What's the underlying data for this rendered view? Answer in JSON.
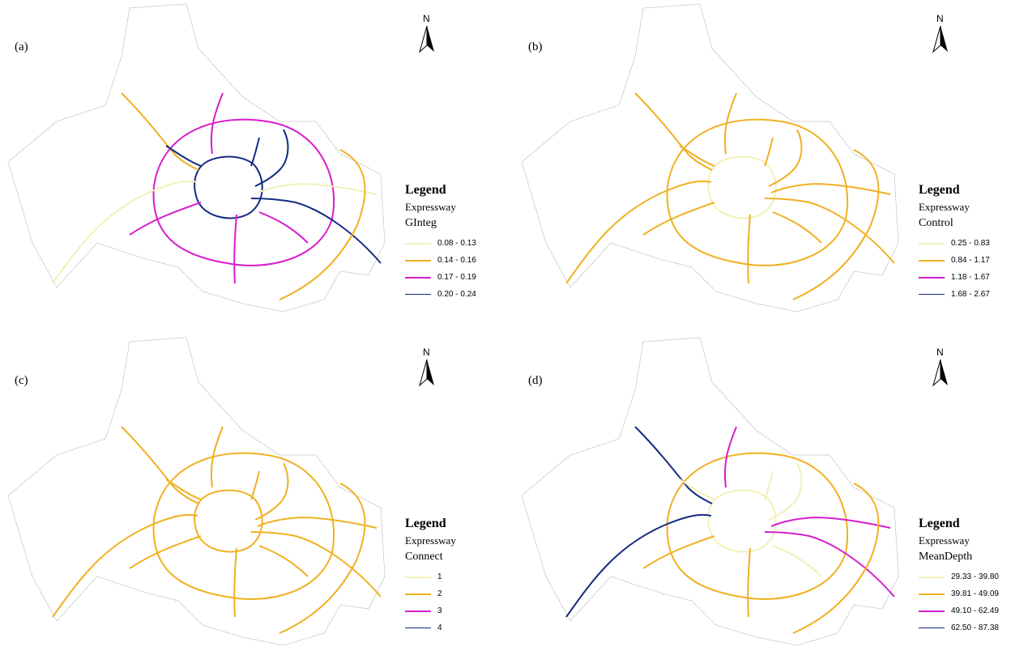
{
  "colors": {
    "class1": "#f2f0b8",
    "class2": "#f0b020",
    "class3": "#d81ccc",
    "class4": "#142a80",
    "boundary": "#a8a8a8"
  },
  "north_label": "N",
  "panels": [
    {
      "label": "(a)",
      "legend_title": "Legend",
      "layer": "Expressway",
      "field": "GInteg",
      "classes": [
        "0.08 - 0.13",
        "0.14 - 0.16",
        "0.17 - 0.19",
        "0.20 - 0.24"
      ]
    },
    {
      "label": "(b)",
      "legend_title": "Legend",
      "layer": "Expressway",
      "field": "Control",
      "classes": [
        "0.25 - 0.83",
        "0.84 - 1.17",
        "1.18 - 1.67",
        "1.68 - 2.67"
      ]
    },
    {
      "label": "(c)",
      "legend_title": "Legend",
      "layer": "Expressway",
      "field": "Connect",
      "classes": [
        "1",
        "2",
        "3",
        "4"
      ]
    },
    {
      "label": "(d)",
      "legend_title": "Legend",
      "layer": "Expressway",
      "field": "MeanDepth",
      "classes": [
        "29.33 - 39.80",
        "39.81 - 49.09",
        "49.10 - 62.49",
        "62.50 - 87.38"
      ]
    }
  ]
}
